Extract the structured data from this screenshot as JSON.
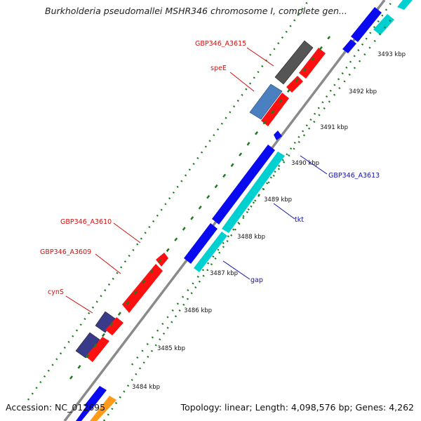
{
  "title": "Burkholderia pseudomallei MSHR346 chromosome I, complete gen...",
  "footer": {
    "accession": "Accession: NC_012695",
    "summary": "Topology: linear; Length: 4,098,576 bp; Genes: 4,262"
  },
  "colors": {
    "backbone": "#8a8a8a",
    "tick_green": "#1f7a1f",
    "label_red": "#d01010",
    "label_blue": "#1010b0"
  },
  "tick_labels": [
    "3484 kbp",
    "3485 kbp",
    "3486 kbp",
    "3487 kbp",
    "3488 kbp",
    "3489 kbp",
    "3490 kbp",
    "3491 kbp",
    "3492 kbp",
    "3493 kbp"
  ],
  "genes": {
    "gbp346_a3615": "GBP346_A3615",
    "spee": "speE",
    "gbp346_a3613": "GBP346_A3613",
    "tkt": "tkt",
    "gap": "gap",
    "gbp346_a3610": "GBP346_A3610",
    "gbp346_a3609": "GBP346_A3609",
    "cyns": "cynS"
  }
}
